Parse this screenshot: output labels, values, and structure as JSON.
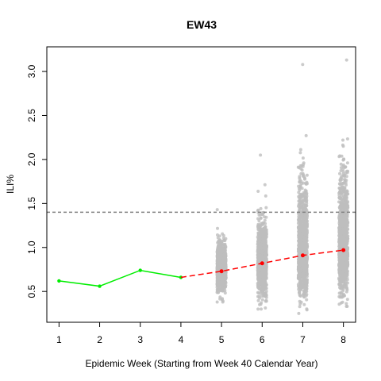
{
  "chart_data": {
    "type": "scatter",
    "title": "EW43",
    "xlabel": "Epidemic Week (Starting from Week 40 Calendar Year)",
    "ylabel": "ILI%",
    "xlim": [
      0.7,
      8.3
    ],
    "ylim": [
      0.15,
      3.28
    ],
    "x_ticks": [
      1,
      2,
      3,
      4,
      5,
      6,
      7,
      8
    ],
    "y_ticks": [
      "0.5",
      "1.0",
      "1.5",
      "2.0",
      "2.5",
      "3.0"
    ],
    "grid": false,
    "legend": "none",
    "threshold_line": {
      "y": 1.4,
      "style": "dashed",
      "color": "#808080"
    },
    "observed": {
      "x": [
        1,
        2,
        3,
        4
      ],
      "y": [
        0.62,
        0.56,
        0.74,
        0.66
      ],
      "color": "#00ee00"
    },
    "forecast_median": {
      "x": [
        4,
        5,
        6,
        7,
        8
      ],
      "y": [
        0.66,
        0.73,
        0.82,
        0.91,
        0.97
      ],
      "color": "#ff0000"
    },
    "simulations": [
      {
        "x": 5,
        "center": 0.78,
        "min": 0.38,
        "max": 1.43,
        "color": "#bebebe"
      },
      {
        "x": 6,
        "center": 0.84,
        "min": 0.3,
        "max": 2.05,
        "color": "#bebebe"
      },
      {
        "x": 7,
        "center": 0.92,
        "min": 0.25,
        "max": 3.08,
        "color": "#bebebe"
      },
      {
        "x": 8,
        "center": 0.98,
        "min": 0.33,
        "max": 3.13,
        "color": "#bebebe"
      }
    ]
  }
}
